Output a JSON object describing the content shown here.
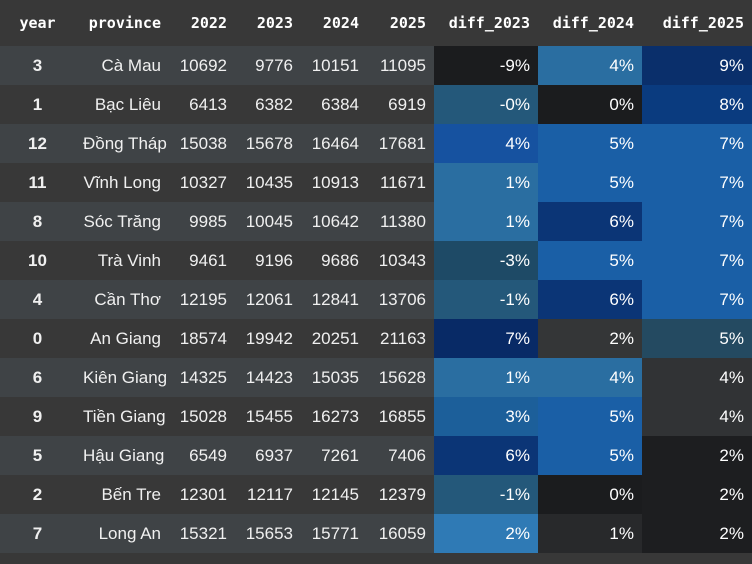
{
  "columns": [
    "year",
    "province",
    "2022",
    "2023",
    "2024",
    "2025",
    "diff_2023",
    "diff_2024",
    "diff_2025"
  ],
  "rows": [
    {
      "idx": "3",
      "province": "Cà Mau",
      "v2022": "10692",
      "v2023": "9776",
      "v2024": "10151",
      "v2025": "11095",
      "d2023": "-9%",
      "d2024": "4%",
      "d2025": "9%",
      "c2023": "#1b1c1e",
      "c2024": "#2a6ea1",
      "c2025": "#0a2f6b"
    },
    {
      "idx": "1",
      "province": "Bạc Liêu",
      "v2022": "6413",
      "v2023": "6382",
      "v2024": "6384",
      "v2025": "6919",
      "d2023": "-0%",
      "d2024": "0%",
      "d2025": "8%",
      "c2023": "#24587a",
      "c2024": "#1b1c1e",
      "c2025": "#0a3b7f"
    },
    {
      "idx": "12",
      "province": "Đồng Tháp",
      "v2022": "15038",
      "v2023": "15678",
      "v2024": "16464",
      "v2025": "17681",
      "d2023": "4%",
      "d2024": "5%",
      "d2025": "7%",
      "c2023": "#1652a0",
      "c2024": "#1a5fa6",
      "c2025": "#1a5fa6"
    },
    {
      "idx": "11",
      "province": "Vĩnh Long",
      "v2022": "10327",
      "v2023": "10435",
      "v2024": "10913",
      "v2025": "11671",
      "d2023": "1%",
      "d2024": "5%",
      "d2025": "7%",
      "c2023": "#2a6ea1",
      "c2024": "#1a5fa6",
      "c2025": "#1a5fa6"
    },
    {
      "idx": "8",
      "province": "Sóc Trăng",
      "v2022": "9985",
      "v2023": "10045",
      "v2024": "10642",
      "v2025": "11380",
      "d2023": "1%",
      "d2024": "6%",
      "d2025": "7%",
      "c2023": "#2a6ea1",
      "c2024": "#0b3576",
      "c2025": "#1a5fa6"
    },
    {
      "idx": "10",
      "province": "Trà Vinh",
      "v2022": "9461",
      "v2023": "9196",
      "v2024": "9686",
      "v2025": "10343",
      "d2023": "-3%",
      "d2024": "5%",
      "d2025": "7%",
      "c2023": "#1e4a66",
      "c2024": "#1a5fa6",
      "c2025": "#1a5fa6"
    },
    {
      "idx": "4",
      "province": "Cần Thơ",
      "v2022": "12195",
      "v2023": "12061",
      "v2024": "12841",
      "v2025": "13706",
      "d2023": "-1%",
      "d2024": "6%",
      "d2025": "7%",
      "c2023": "#24587a",
      "c2024": "#0b3576",
      "c2025": "#1a5fa6"
    },
    {
      "idx": "0",
      "province": "An Giang",
      "v2022": "18574",
      "v2023": "19942",
      "v2024": "20251",
      "v2025": "21163",
      "d2023": "7%",
      "d2024": "2%",
      "d2025": "5%",
      "c2023": "#082a66",
      "c2024": "#343637",
      "c2025": "#244a61"
    },
    {
      "idx": "6",
      "province": "Kiên Giang",
      "v2022": "14325",
      "v2023": "14423",
      "v2024": "15035",
      "v2025": "15628",
      "d2023": "1%",
      "d2024": "4%",
      "d2025": "4%",
      "c2023": "#2a6ea1",
      "c2024": "#2a6ea1",
      "c2025": "#313335"
    },
    {
      "idx": "9",
      "province": "Tiền Giang",
      "v2022": "15028",
      "v2023": "15455",
      "v2024": "16273",
      "v2025": "16855",
      "d2023": "3%",
      "d2024": "5%",
      "d2025": "4%",
      "c2023": "#1c5f9a",
      "c2024": "#1a5fa6",
      "c2025": "#313335"
    },
    {
      "idx": "5",
      "province": "Hậu Giang",
      "v2022": "6549",
      "v2023": "6937",
      "v2024": "7261",
      "v2025": "7406",
      "d2023": "6%",
      "d2024": "5%",
      "d2025": "2%",
      "c2023": "#0b3576",
      "c2024": "#1a5fa6",
      "c2025": "#1d1e20"
    },
    {
      "idx": "2",
      "province": "Bến Tre",
      "v2022": "12301",
      "v2023": "12117",
      "v2024": "12145",
      "v2025": "12379",
      "d2023": "-1%",
      "d2024": "0%",
      "d2025": "2%",
      "c2023": "#24587a",
      "c2024": "#1b1c1e",
      "c2025": "#1d1e20"
    },
    {
      "idx": "7",
      "province": "Long An",
      "v2022": "15321",
      "v2023": "15653",
      "v2024": "15771",
      "v2025": "16059",
      "d2023": "2%",
      "d2024": "1%",
      "d2025": "2%",
      "c2023": "#2f7ab5",
      "c2024": "#28292b",
      "c2025": "#1d1e20"
    }
  ]
}
